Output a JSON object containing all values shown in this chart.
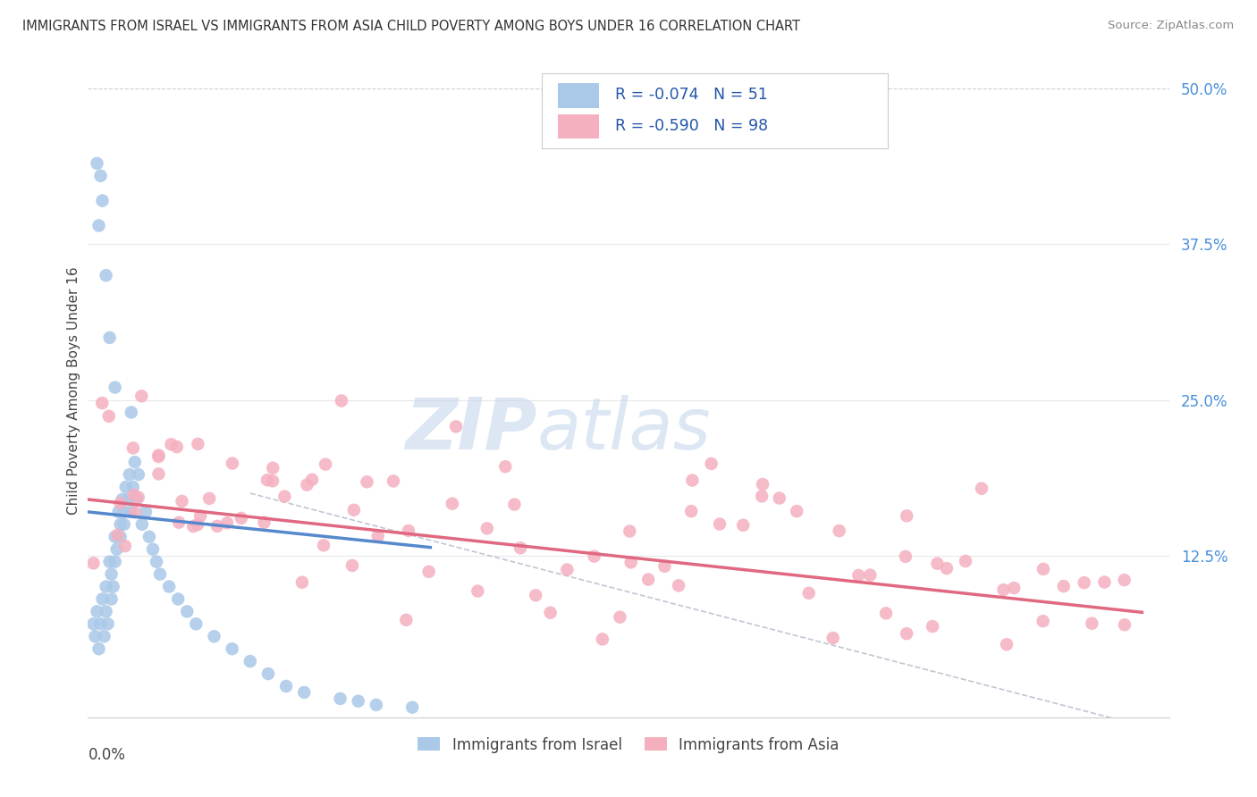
{
  "title": "IMMIGRANTS FROM ISRAEL VS IMMIGRANTS FROM ASIA CHILD POVERTY AMONG BOYS UNDER 16 CORRELATION CHART",
  "source": "Source: ZipAtlas.com",
  "ylabel": "Child Poverty Among Boys Under 16",
  "xlim": [
    0.0,
    0.6
  ],
  "ylim": [
    -0.005,
    0.52
  ],
  "israel_R": -0.074,
  "israel_N": 51,
  "asia_R": -0.59,
  "asia_N": 98,
  "israel_color": "#aac8e8",
  "asia_color": "#f5b0c0",
  "israel_line_color": "#5588cc",
  "asia_line_color": "#e06880",
  "watermark_zip": "ZIP",
  "watermark_atlas": "atlas",
  "watermark_color_zip": "#c5d8ec",
  "watermark_color_atlas": "#c5d8ec",
  "background_color": "#ffffff",
  "grid_color": "#e8e8e8",
  "legend_text_color": "#2255aa"
}
